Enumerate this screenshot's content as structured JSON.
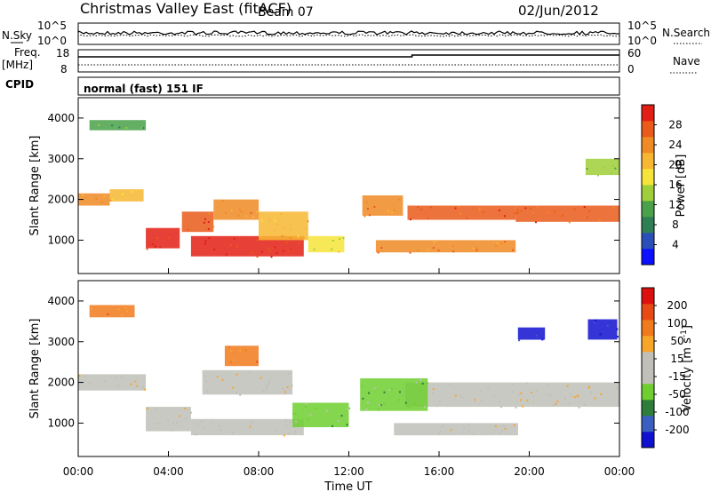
{
  "header": {
    "title": "Christmas Valley East (fitACF)",
    "beam": "Beam 07",
    "date": "02/Jun/2012"
  },
  "summary": {
    "nsky_label": "N.Sky",
    "nsky_top_tick": "10^5",
    "nsky_bottom_tick": "10^0",
    "nsearch_top_tick": "10^5",
    "nsearch_bottom_tick": "10^0",
    "nsearch_label": "N.Search",
    "freq_label_line1": "Freq.",
    "freq_label_line2": "[MHz]",
    "freq_top_tick": "18",
    "freq_bottom_tick": "8",
    "nave_top_tick": "60",
    "nave_bottom_tick": "0",
    "nave_label": "Nave",
    "cpid_label": "CPID",
    "cpid_value": "normal (fast) 151 IF"
  },
  "chart_data": [
    {
      "type": "heatmap",
      "name": "power",
      "ylabel": "Slant Range [km]",
      "ylim": [
        180,
        4500
      ],
      "yticks": [
        "1000",
        "2000",
        "3000",
        "4000"
      ],
      "xlabel": "Time UT",
      "xticks": [
        "00:00",
        "04:00",
        "08:00",
        "12:00",
        "16:00",
        "20:00",
        "00:00"
      ],
      "colorbar": {
        "label": "Power [dB]",
        "tick_labels": [
          "4",
          "8",
          "12",
          "16",
          "20",
          "24",
          "28"
        ],
        "colors": [
          "#0c10ff",
          "#2a4fb8",
          "#2f7f55",
          "#4aa14a",
          "#9fcf3a",
          "#f6e43a",
          "#f7b733",
          "#f08a24",
          "#ea5a1a",
          "#e21f14"
        ]
      },
      "bands": [
        {
          "t0": 0.0,
          "t1": 1.4,
          "r0": 1850,
          "r1": 2150,
          "level": 0.75
        },
        {
          "t0": 1.4,
          "t1": 2.9,
          "r0": 1950,
          "r1": 2250,
          "level": 0.7
        },
        {
          "t0": 3.0,
          "t1": 4.5,
          "r0": 800,
          "r1": 1300,
          "level": 0.95
        },
        {
          "t0": 4.6,
          "t1": 6.0,
          "r0": 1200,
          "r1": 1700,
          "level": 0.85
        },
        {
          "t0": 6.0,
          "t1": 8.0,
          "r0": 1500,
          "r1": 2000,
          "level": 0.8
        },
        {
          "t0": 5.0,
          "t1": 10.0,
          "r0": 600,
          "r1": 1100,
          "level": 0.95
        },
        {
          "t0": 8.0,
          "t1": 10.2,
          "r0": 1000,
          "r1": 1700,
          "level": 0.7
        },
        {
          "t0": 10.2,
          "t1": 11.8,
          "r0": 700,
          "r1": 1100,
          "level": 0.6
        },
        {
          "t0": 12.6,
          "t1": 14.4,
          "r0": 1600,
          "r1": 2100,
          "level": 0.8
        },
        {
          "t0": 14.6,
          "t1": 19.4,
          "r0": 1500,
          "r1": 1850,
          "level": 0.85
        },
        {
          "t0": 13.2,
          "t1": 19.4,
          "r0": 700,
          "r1": 1000,
          "level": 0.8
        },
        {
          "t0": 19.4,
          "t1": 24.0,
          "r0": 1450,
          "r1": 1850,
          "level": 0.85
        },
        {
          "t0": 0.5,
          "t1": 3.0,
          "r0": 3700,
          "r1": 3950,
          "level": 0.35
        },
        {
          "t0": 22.5,
          "t1": 24.0,
          "r0": 2600,
          "r1": 3000,
          "level": 0.4
        }
      ]
    },
    {
      "type": "heatmap",
      "name": "velocity",
      "ylabel": "Slant Range [km]",
      "ylim": [
        180,
        4500
      ],
      "yticks": [
        "1000",
        "2000",
        "3000",
        "4000"
      ],
      "xlabel": "Time UT",
      "xticks": [
        "00:00",
        "04:00",
        "08:00",
        "12:00",
        "16:00",
        "20:00",
        "00:00"
      ],
      "colorbar": {
        "label": "Velocity [m s",
        "label_sup": "-1",
        "label_close": "]",
        "tick_labels": [
          "200",
          "100",
          "50",
          "15",
          "-15",
          "-50",
          "-100",
          "-200"
        ],
        "colors": [
          "#1010d0",
          "#3a5fc0",
          "#2e7d3a",
          "#6fcf30",
          "#c0c0b8",
          "#c0c0b8",
          "#f7a62a",
          "#f07a1c",
          "#e84a16",
          "#dd1010"
        ]
      },
      "bands": [
        {
          "t0": 0.0,
          "t1": 3.0,
          "r0": 1800,
          "r1": 2200,
          "level": 0.5
        },
        {
          "t0": 3.0,
          "t1": 5.0,
          "r0": 800,
          "r1": 1400,
          "level": 0.5
        },
        {
          "t0": 5.0,
          "t1": 10.0,
          "r0": 700,
          "r1": 1100,
          "level": 0.5
        },
        {
          "t0": 5.5,
          "t1": 9.5,
          "r0": 1700,
          "r1": 2300,
          "level": 0.55
        },
        {
          "t0": 14.5,
          "t1": 24.0,
          "r0": 1400,
          "r1": 2000,
          "level": 0.5
        },
        {
          "t0": 14.0,
          "t1": 19.5,
          "r0": 700,
          "r1": 1000,
          "level": 0.5
        },
        {
          "t0": 9.5,
          "t1": 12.0,
          "r0": 900,
          "r1": 1500,
          "level": 0.35
        },
        {
          "t0": 12.5,
          "t1": 15.5,
          "r0": 1300,
          "r1": 2100,
          "level": 0.35
        },
        {
          "t0": 19.5,
          "t1": 20.7,
          "r0": 3050,
          "r1": 3350,
          "level": 0.05
        },
        {
          "t0": 22.6,
          "t1": 23.9,
          "r0": 3050,
          "r1": 3550,
          "level": 0.05
        },
        {
          "t0": 0.5,
          "t1": 2.5,
          "r0": 3600,
          "r1": 3900,
          "level": 0.75
        },
        {
          "t0": 6.5,
          "t1": 8.0,
          "r0": 2400,
          "r1": 2900,
          "level": 0.75
        }
      ]
    }
  ]
}
